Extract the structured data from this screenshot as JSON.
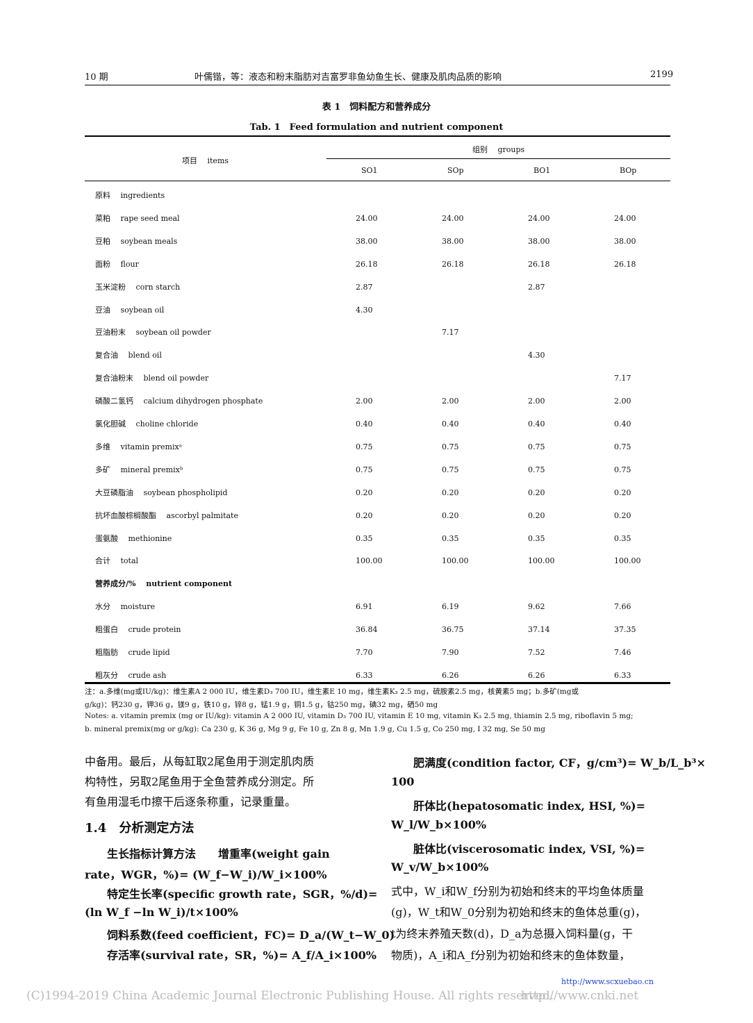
{
  "header": {
    "issue": "10 期",
    "running_title": "叶儒锴，等：液态和粉末脂肪对吉富罗非鱼幼鱼生长、健康及肌肉品质的影响",
    "page_number": "2199"
  },
  "table": {
    "caption_cn": "表 1　饲料配方和营养成分",
    "caption_en": "Tab. 1　Feed formulation and nutrient component",
    "item_header": "项目　 items",
    "group_header": "组别　 groups",
    "columns": [
      "SO1",
      "SOp",
      "BO1",
      "BOp"
    ],
    "rows": [
      {
        "label": "原料　 ingredients",
        "values": [
          "",
          "",
          "",
          ""
        ],
        "section": true
      },
      {
        "label": "菜粕　 rape seed meal",
        "values": [
          "24.00",
          "24.00",
          "24.00",
          "24.00"
        ]
      },
      {
        "label": "豆粕　 soybean meals",
        "values": [
          "38.00",
          "38.00",
          "38.00",
          "38.00"
        ]
      },
      {
        "label": "面粉　 flour",
        "values": [
          "26.18",
          "26.18",
          "26.18",
          "26.18"
        ]
      },
      {
        "label": "玉米淀粉　 corn starch",
        "values": [
          "2.87",
          "",
          "2.87",
          ""
        ]
      },
      {
        "label": "豆油　 soybean oil",
        "values": [
          "4.30",
          "",
          "",
          ""
        ]
      },
      {
        "label": "豆油粉末　 soybean oil powder",
        "values": [
          "",
          "7.17",
          "",
          ""
        ]
      },
      {
        "label": "复合油　 blend oil",
        "values": [
          "",
          "",
          "4.30",
          ""
        ]
      },
      {
        "label": "复合油粉末　 blend oil powder",
        "values": [
          "",
          "",
          "",
          "7.17"
        ]
      },
      {
        "label": "磷酸二氢钙　 calcium dihydrogen phosphate",
        "values": [
          "2.00",
          "2.00",
          "2.00",
          "2.00"
        ]
      },
      {
        "label": "氯化胆碱　 choline chloride",
        "values": [
          "0.40",
          "0.40",
          "0.40",
          "0.40"
        ]
      },
      {
        "label": "多维　 vitamin premixᵃ",
        "values": [
          "0.75",
          "0.75",
          "0.75",
          "0.75"
        ]
      },
      {
        "label": "多矿　 mineral premixᵇ",
        "values": [
          "0.75",
          "0.75",
          "0.75",
          "0.75"
        ]
      },
      {
        "label": "大豆磷脂油　 soybean phospholipid",
        "values": [
          "0.20",
          "0.20",
          "0.20",
          "0.20"
        ]
      },
      {
        "label": "抗坏血酸棕榈酸酯　 ascorbyl palmitate",
        "values": [
          "0.20",
          "0.20",
          "0.20",
          "0.20"
        ]
      },
      {
        "label": "蛋氨酸　 methionine",
        "values": [
          "0.35",
          "0.35",
          "0.35",
          "0.35"
        ]
      },
      {
        "label": "合计　 total",
        "values": [
          "100.00",
          "100.00",
          "100.00",
          "100.00"
        ]
      },
      {
        "label": "营养成分/%　 nutrient component",
        "values": [
          "",
          "",
          "",
          ""
        ],
        "section": true,
        "bold": true
      },
      {
        "label": "水分　 moisture",
        "values": [
          "6.91",
          "6.19",
          "9.62",
          "7.66"
        ]
      },
      {
        "label": "粗蛋白　 crude protein",
        "values": [
          "36.84",
          "36.75",
          "37.14",
          "37.35"
        ]
      },
      {
        "label": "粗脂肪　 crude lipid",
        "values": [
          "7.70",
          "7.90",
          "7.52",
          "7.46"
        ]
      },
      {
        "label": "粗灰分　 crude ash",
        "values": [
          "6.33",
          "6.26",
          "6.26",
          "6.33"
        ]
      }
    ],
    "notes": [
      "注：a.多维(mg或IU/kg)：维生素A 2 000 IU，维生素D₃ 700 IU，维生素E 10 mg，维生素K₃ 2.5 mg，硫胺素2.5 mg，核黄素5 mg；b.多矿(mg或",
      "g/kg)：钙230 g，钾36 g，镁9 g，铁10 g，锌8 g，锰1.9 g，铜1.5 g，钴250 mg，碘32 mg，硒50 mg",
      "Notes: a. vitamin premix (mg or IU/kg): vitamin A 2 000 IU, vitamin D₃ 700 IU, vitamin E 10 mg, vitamin K₃ 2.5 mg, thiamin 2.5 mg, riboflavin 5 mg;",
      "b. mineral premix(mg or g/kg): Ca 230 g, K 36 g, Mg 9 g, Fe 10 g, Zn 8 g, Mn 1.9 g, Cu 1.5 g, Co 250 mg, I 32 mg, Se 50 mg"
    ]
  },
  "left_column": [
    "中备用。最后，从每缸取2尾鱼用于测定肌肉质",
    "构特性，另取2尾鱼用于全鱼营养成分测定。所",
    "有鱼用湿毛巾擦干后逐条称重，记录重量。",
    "1.4　分析测定方法",
    "　　生长指标计算方法　　增重率(weight gain",
    "rate，WGR，%)= (W_f−W_i)/W_i×100%",
    "　　特定生长率(specific growth rate，SGR，%/d)=",
    "(ln W_f −ln W_i)/t×100%",
    "　　饲料系数(feed coefficient，FC)= D_a/(W_t−W_0)",
    "　　存活率(survival rate，SR，%)= A_f/A_i×100%"
  ],
  "right_column": [
    "　　肥满度(condition factor, CF，g/cm³)= W_b/L_b³×",
    "100",
    "　　肝体比(hepatosomatic index, HSI, %)=",
    "W_l/W_b×100%",
    "　　脏体比(viscerosomatic index, VSI, %)=",
    "W_v/W_b×100%",
    "式中，W_i和W_f分别为初始和终末的平均鱼体质量",
    "(g)，W_t和W_0分别为初始和终末的鱼体总重(g)，",
    "t为终末养殖天数(d)，D_a为总摄入饲料量(g，干",
    "物质)，A_i和A_f分别为初始和终末的鱼体数量，"
  ],
  "footer": {
    "journal_url": "http://www.scxuebao.cn",
    "copyright": "(C)1994-2019 China Academic Journal Electronic Publishing House. All rights reserved.",
    "cnki_url": "http://www.cnki.net"
  }
}
